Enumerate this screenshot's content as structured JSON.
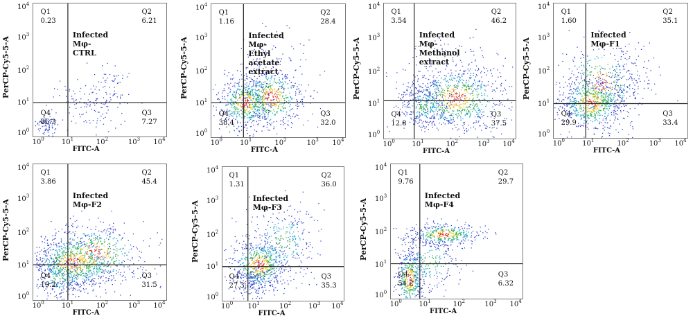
{
  "chart_data": [
    {
      "type": "scatter",
      "title": "Infected Mφ-CTRL",
      "xlabel": "FITC-A",
      "ylabel": "PerCP-Cy5-5-A",
      "x_scale": "log",
      "y_scale": "log",
      "xlim": [
        1,
        10000
      ],
      "ylim": [
        1,
        10000
      ],
      "x_ticks": [
        "10^0",
        "10^1",
        "10^2",
        "10^3",
        "10^4"
      ],
      "y_ticks": [
        "10^0",
        "10^1",
        "10^2",
        "10^3",
        "10^4"
      ],
      "quadrants": {
        "Q1": {
          "label": "Q1",
          "value": "0.23"
        },
        "Q2": {
          "label": "Q2",
          "value": "6.21"
        },
        "Q3": {
          "label": "Q3",
          "value": "7.27"
        },
        "Q4": {
          "label": "Q4",
          "value": "86.3"
        }
      }
    },
    {
      "type": "scatter",
      "title": "Infected Mφ-Ethyl\nacetate extract",
      "xlabel": "FITC-A",
      "ylabel": "PerCP-Cy5-5-A",
      "x_scale": "log",
      "y_scale": "log",
      "xlim": [
        1,
        10000
      ],
      "ylim": [
        1,
        10000
      ],
      "x_ticks": [
        "10^0",
        "10^1",
        "10^2",
        "10^3",
        "10^4"
      ],
      "y_ticks": [
        "10^0",
        "10^1",
        "10^2",
        "10^3",
        "10^4"
      ],
      "quadrants": {
        "Q1": {
          "label": "Q1",
          "value": "1.16"
        },
        "Q2": {
          "label": "Q2",
          "value": "28.4"
        },
        "Q3": {
          "label": "Q3",
          "value": "32.0"
        },
        "Q4": {
          "label": "Q4",
          "value": "38.4"
        }
      }
    },
    {
      "type": "scatter",
      "title": "Infected Mφ-Methanol\nextract",
      "xlabel": "FITC-A",
      "ylabel": "PerCP-Cy5-5-A",
      "x_scale": "log",
      "y_scale": "log",
      "xlim": [
        1,
        10000
      ],
      "ylim": [
        1,
        10000
      ],
      "x_ticks": [
        "10^0",
        "10^1",
        "10^2",
        "10^3",
        "10^4"
      ],
      "y_ticks": [
        "10^0",
        "10^1",
        "10^2",
        "10^3",
        "10^4"
      ],
      "quadrants": {
        "Q1": {
          "label": "Q1",
          "value": "3.54"
        },
        "Q2": {
          "label": "Q2",
          "value": "46.2"
        },
        "Q3": {
          "label": "Q3",
          "value": "37.5"
        },
        "Q4": {
          "label": "Q4",
          "value": "12.8"
        }
      }
    },
    {
      "type": "scatter",
      "title": "Infected Mφ-F1",
      "xlabel": "FITC-A",
      "ylabel": "PerCP-Cy5-5-A",
      "x_scale": "log",
      "y_scale": "log",
      "xlim": [
        1,
        10000
      ],
      "ylim": [
        1,
        10000
      ],
      "x_ticks": [
        "10^0",
        "10^1",
        "10^2",
        "10^3",
        "10^4"
      ],
      "y_ticks": [
        "10^0",
        "10^1",
        "10^2",
        "10^3",
        "10^4"
      ],
      "quadrants": {
        "Q1": {
          "label": "Q1",
          "value": "1.60"
        },
        "Q2": {
          "label": "Q2",
          "value": "35.1"
        },
        "Q3": {
          "label": "Q3",
          "value": "33.4"
        },
        "Q4": {
          "label": "Q4",
          "value": "29.9"
        }
      }
    },
    {
      "type": "scatter",
      "title": "Infected Mφ-F2",
      "xlabel": "FITC-A",
      "ylabel": "PerCP-Cy5-5-A",
      "x_scale": "log",
      "y_scale": "log",
      "xlim": [
        1,
        10000
      ],
      "ylim": [
        1,
        10000
      ],
      "x_ticks": [
        "10^0",
        "10^1",
        "10^2",
        "10^3",
        "10^4"
      ],
      "y_ticks": [
        "10^0",
        "10^1",
        "10^2",
        "10^3",
        "10^4"
      ],
      "quadrants": {
        "Q1": {
          "label": "Q1",
          "value": "3.86"
        },
        "Q2": {
          "label": "Q2",
          "value": "45.4"
        },
        "Q3": {
          "label": "Q3",
          "value": "31.5"
        },
        "Q4": {
          "label": "Q4",
          "value": "19.2"
        }
      }
    },
    {
      "type": "scatter",
      "title": "Infected Mφ-F3",
      "xlabel": "FITC-A",
      "ylabel": "PerCP-Cy5-5-A",
      "x_scale": "log",
      "y_scale": "log",
      "xlim": [
        1,
        10000
      ],
      "ylim": [
        1,
        10000
      ],
      "x_ticks": [
        "10^0",
        "10^1",
        "10^2",
        "10^3",
        "10^4"
      ],
      "y_ticks": [
        "10^0",
        "10^1",
        "10^2",
        "10^3",
        "10^4"
      ],
      "quadrants": {
        "Q1": {
          "label": "Q1",
          "value": "1.31"
        },
        "Q2": {
          "label": "Q2",
          "value": "36.0"
        },
        "Q3": {
          "label": "Q3",
          "value": "35.3"
        },
        "Q4": {
          "label": "Q4",
          "value": "27.3"
        }
      }
    },
    {
      "type": "scatter",
      "title": "Infected Mφ-F4",
      "xlabel": "FITC-A",
      "ylabel": "PerCP-Cy5-5-A",
      "x_scale": "log",
      "y_scale": "log",
      "xlim": [
        1,
        10000
      ],
      "ylim": [
        1,
        10000
      ],
      "x_ticks": [
        "10^0",
        "10^1",
        "10^2",
        "10^3",
        "10^4"
      ],
      "y_ticks": [
        "10^0",
        "10^1",
        "10^2",
        "10^3",
        "10^4"
      ],
      "quadrants": {
        "Q1": {
          "label": "Q1",
          "value": "9.76"
        },
        "Q2": {
          "label": "Q2",
          "value": "29.7"
        },
        "Q3": {
          "label": "Q3",
          "value": "6.32"
        },
        "Q4": {
          "label": "Q4",
          "value": "54.2"
        }
      }
    }
  ]
}
